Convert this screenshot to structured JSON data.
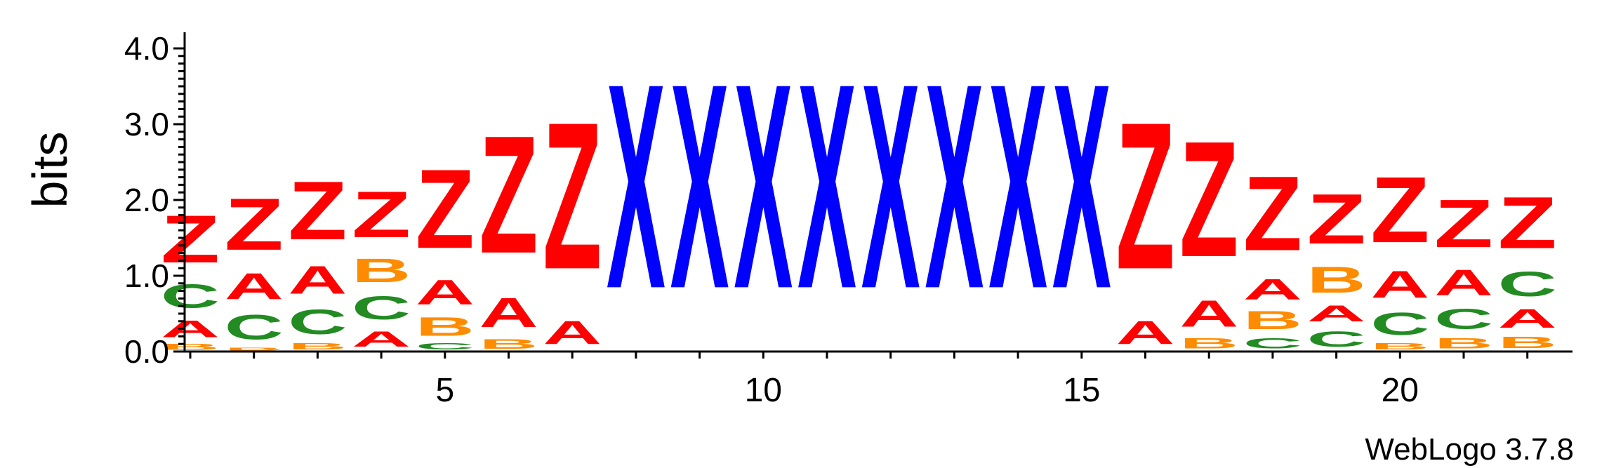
{
  "chart_data": {
    "type": "sequence-logo",
    "ylabel": "bits",
    "ylim": [
      0,
      4.0
    ],
    "yticks": [
      "0.0",
      "1.0",
      "2.0",
      "3.0",
      "4.0"
    ],
    "xticks": [
      5,
      10,
      15,
      20
    ],
    "credit": "WebLogo 3.7.8",
    "colors": {
      "Z": "#ff0000",
      "A": "#ff0000",
      "C": "#228b22",
      "B": "#ff8c00",
      "X": "#0000ff"
    },
    "columns": [
      {
        "pos": 1,
        "stack": [
          [
            "B",
            0.12
          ],
          [
            "A",
            0.36
          ],
          [
            "C",
            0.5
          ],
          [
            "Z",
            1.0
          ]
        ]
      },
      {
        "pos": 2,
        "stack": [
          [
            "B",
            0.06
          ],
          [
            "C",
            0.52
          ],
          [
            "A",
            0.55
          ],
          [
            "Z",
            1.09
          ]
        ]
      },
      {
        "pos": 3,
        "stack": [
          [
            "B",
            0.13
          ],
          [
            "C",
            0.52
          ],
          [
            "A",
            0.59
          ],
          [
            "Z",
            1.23
          ]
        ]
      },
      {
        "pos": 4,
        "stack": [
          [
            "A",
            0.33
          ],
          [
            "C",
            0.49
          ],
          [
            "B",
            0.5
          ],
          [
            "Z",
            0.97
          ]
        ]
      },
      {
        "pos": 5,
        "stack": [
          [
            "C",
            0.13
          ],
          [
            "B",
            0.39
          ],
          [
            "A",
            0.52
          ],
          [
            "Z",
            1.67
          ]
        ]
      },
      {
        "pos": 6,
        "stack": [
          [
            "B",
            0.2
          ],
          [
            "A",
            0.62
          ],
          [
            "Z",
            2.48
          ]
        ]
      },
      {
        "pos": 7,
        "stack": [
          [
            "A",
            0.49
          ],
          [
            "Z",
            3.1
          ]
        ]
      },
      {
        "pos": 8,
        "stack": [
          [
            "X",
            4.32
          ]
        ]
      },
      {
        "pos": 9,
        "stack": [
          [
            "X",
            4.32
          ]
        ]
      },
      {
        "pos": 10,
        "stack": [
          [
            "X",
            4.32
          ]
        ]
      },
      {
        "pos": 11,
        "stack": [
          [
            "X",
            4.32
          ]
        ]
      },
      {
        "pos": 12,
        "stack": [
          [
            "X",
            4.32
          ]
        ]
      },
      {
        "pos": 13,
        "stack": [
          [
            "X",
            4.32
          ]
        ]
      },
      {
        "pos": 14,
        "stack": [
          [
            "X",
            4.32
          ]
        ]
      },
      {
        "pos": 15,
        "stack": [
          [
            "X",
            4.32
          ]
        ]
      },
      {
        "pos": 16,
        "stack": [
          [
            "A",
            0.49
          ],
          [
            "Z",
            3.1
          ]
        ]
      },
      {
        "pos": 17,
        "stack": [
          [
            "B",
            0.22
          ],
          [
            "A",
            0.56
          ],
          [
            "Z",
            2.44
          ]
        ]
      },
      {
        "pos": 18,
        "stack": [
          [
            "C",
            0.22
          ],
          [
            "B",
            0.38
          ],
          [
            "A",
            0.43
          ],
          [
            "Z",
            1.57
          ]
        ]
      },
      {
        "pos": 19,
        "stack": [
          [
            "C",
            0.33
          ],
          [
            "A",
            0.34
          ],
          [
            "B",
            0.55
          ],
          [
            "Z",
            1.05
          ]
        ]
      },
      {
        "pos": 20,
        "stack": [
          [
            "B",
            0.13
          ],
          [
            "C",
            0.47
          ],
          [
            "A",
            0.57
          ],
          [
            "Z",
            1.39
          ]
        ]
      },
      {
        "pos": 21,
        "stack": [
          [
            "B",
            0.22
          ],
          [
            "C",
            0.42
          ],
          [
            "A",
            0.54
          ],
          [
            "Z",
            1.01
          ]
        ]
      },
      {
        "pos": 22,
        "stack": [
          [
            "B",
            0.24
          ],
          [
            "A",
            0.39
          ],
          [
            "C",
            0.52
          ],
          [
            "Z",
            1.09
          ]
        ]
      }
    ]
  }
}
